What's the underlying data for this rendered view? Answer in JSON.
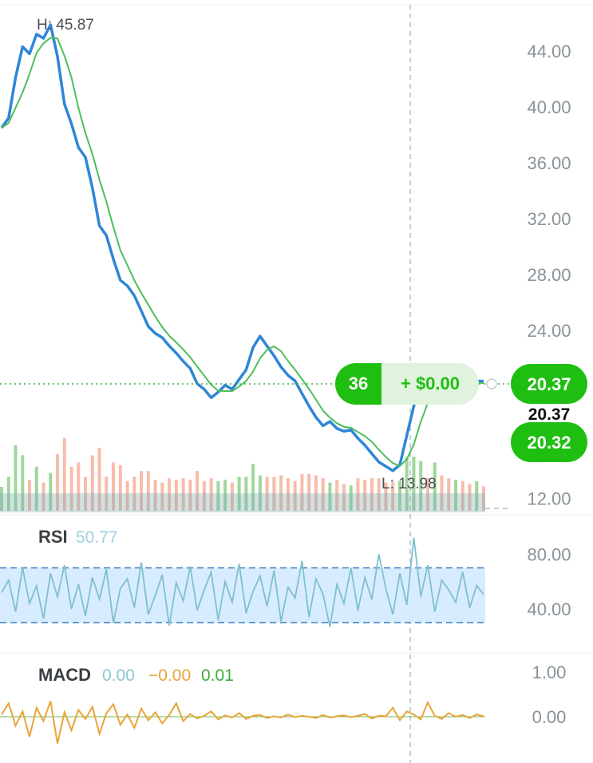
{
  "chart_data": {
    "type": "line",
    "price_panel": {
      "y_ticks": [
        "44.00",
        "40.00",
        "36.00",
        "32.00",
        "28.00",
        "24.00",
        "12.00"
      ],
      "y_tick_values": [
        44,
        40,
        36,
        32,
        28,
        24,
        12
      ],
      "ylim": [
        11,
        46.5
      ],
      "high_label": "H: 45.87",
      "high_value": 45.87,
      "low_label": "L: 13.98",
      "low_value": 13.98,
      "last_price": "20.37",
      "last_price_value": 20.37,
      "last_price_repeat": "20.37",
      "bid_price": "20.32",
      "position_qty": "36",
      "position_pnl": "+ $0.00",
      "close_series": [
        38.5,
        39.2,
        42.1,
        44.3,
        43.8,
        45.2,
        44.9,
        45.87,
        43.6,
        40.2,
        38.8,
        37.1,
        36.4,
        34.2,
        31.5,
        30.8,
        29.1,
        27.6,
        27.2,
        26.5,
        25.4,
        24.3,
        23.8,
        23.5,
        22.9,
        22.4,
        21.8,
        21.3,
        20.2,
        19.8,
        19.2,
        19.6,
        20.1,
        19.8,
        20.5,
        21.2,
        22.8,
        23.6,
        22.9,
        22.2,
        21.4,
        20.8,
        20.4,
        19.5,
        18.6,
        17.8,
        17.2,
        17.5,
        17.0,
        16.8,
        16.9,
        16.3,
        15.8,
        15.2,
        14.6,
        14.3,
        13.98,
        14.4,
        16.5,
        18.6,
        20.4,
        19.8,
        21.5,
        20.7,
        20.1,
        20.6,
        20.2,
        20.0,
        20.4,
        20.37
      ]
    },
    "rsi_panel": {
      "title": "RSI",
      "value": "50.77",
      "y_ticks": [
        "80.00",
        "40.00"
      ],
      "y_tick_values": [
        80,
        40
      ],
      "ylim": [
        15,
        100
      ],
      "band": [
        30,
        70
      ],
      "series": [
        52,
        61,
        38,
        70,
        44,
        57,
        33,
        66,
        49,
        72,
        40,
        58,
        35,
        63,
        47,
        69,
        30,
        55,
        62,
        41,
        74,
        36,
        50,
        65,
        28,
        59,
        46,
        71,
        39,
        54,
        67,
        32,
        60,
        45,
        73,
        37,
        53,
        64,
        42,
        68,
        31,
        56,
        48,
        75,
        34,
        62,
        51,
        27,
        58,
        44,
        70,
        39,
        63,
        47,
        80,
        55,
        36,
        66,
        43,
        92,
        49,
        72,
        38,
        61,
        54,
        45,
        67,
        41,
        57,
        50.77
      ]
    },
    "macd_panel": {
      "title": "MACD",
      "values": [
        "0.00",
        "−0.00",
        "0.01"
      ],
      "value_colors": [
        "#8cc7d3",
        "#e8a53a",
        "#3cae3c"
      ],
      "y_ticks": [
        "1.00",
        "0.00"
      ],
      "y_tick_values": [
        1,
        0
      ],
      "ylim": [
        -1,
        1
      ],
      "series": [
        0.05,
        0.3,
        -0.2,
        0.12,
        -0.45,
        0.2,
        -0.1,
        0.35,
        -0.6,
        0.1,
        -0.3,
        0.15,
        -0.05,
        0.22,
        -0.38,
        0.08,
        0.28,
        -0.18,
        0.05,
        -0.25,
        0.18,
        -0.08,
        0.1,
        -0.15,
        0.04,
        0.3,
        -0.1,
        0.06,
        -0.04,
        0.02,
        0.12,
        -0.06,
        0.03,
        -0.02,
        0.08,
        -0.05,
        0.02,
        0.04,
        -0.03,
        0.01,
        -0.02,
        0.05,
        -0.01,
        0.02,
        0.0,
        -0.03,
        0.04,
        -0.02,
        0.01,
        0.03,
        -0.01,
        0.02,
        0.06,
        -0.04,
        0.02,
        0.01,
        0.2,
        -0.08,
        0.12,
        0.05,
        -0.06,
        0.32,
        0.02,
        -0.05,
        0.08,
        0.0,
        0.04,
        -0.03,
        0.05,
        0.01
      ]
    },
    "colors": {
      "price_line": "#2f86d6",
      "ma_line": "#4cbf5a",
      "up_volume": "#8fd08a",
      "down_volume": "#f4b29a",
      "accent_green": "#1fbf12",
      "rsi_line": "#7fbfd0",
      "rsi_band": "#d8ecff",
      "macd_line": "#e8a53a"
    }
  }
}
